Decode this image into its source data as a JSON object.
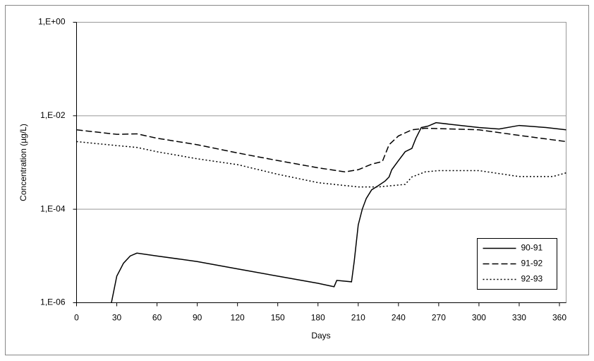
{
  "chart_data": {
    "type": "line",
    "x_label": "Days",
    "y_label": "Concentration (µg/L)",
    "xlim": [
      0,
      365
    ],
    "xticks": [
      0,
      30,
      60,
      90,
      120,
      150,
      180,
      210,
      240,
      270,
      300,
      330,
      360
    ],
    "ylim": [
      1e-06,
      1
    ],
    "y_scale": "log",
    "yticks": [
      {
        "value": 1e-06,
        "label": "1,E-06"
      },
      {
        "value": 0.0001,
        "label": "1,E-04"
      },
      {
        "value": 0.01,
        "label": "1,E-02"
      },
      {
        "value": 1,
        "label": "1,E+00"
      }
    ],
    "grid": true,
    "legend": "lower right",
    "series": [
      {
        "name": "90-91",
        "color": "#000000",
        "line_style": "solid",
        "x": [
          26,
          30,
          35,
          40,
          45,
          60,
          90,
          120,
          150,
          180,
          192,
          194,
          205,
          207,
          210,
          213,
          216,
          220,
          225,
          230,
          233,
          235,
          240,
          245,
          250,
          253,
          257,
          262,
          268,
          300,
          315,
          330,
          350,
          365
        ],
        "values": [
          1e-06,
          3.7e-06,
          7e-06,
          1e-05,
          1.15e-05,
          1e-05,
          7.6e-06,
          5.3e-06,
          3.7e-06,
          2.6e-06,
          2.2e-06,
          3e-06,
          2.8e-06,
          7.6e-06,
          4.6e-05,
          0.0001,
          0.00017,
          0.00026,
          0.00032,
          0.0004,
          0.00049,
          0.0007,
          0.0011,
          0.0017,
          0.002,
          0.0033,
          0.0056,
          0.006,
          0.0071,
          0.0056,
          0.0052,
          0.0062,
          0.0056,
          0.005
        ]
      },
      {
        "name": "91-92",
        "color": "#000000",
        "line_style": "dashed",
        "x": [
          0,
          30,
          45,
          60,
          90,
          120,
          150,
          180,
          200,
          210,
          220,
          228,
          233,
          240,
          250,
          260,
          300,
          330,
          365
        ],
        "values": [
          0.005,
          0.004,
          0.0041,
          0.0033,
          0.0024,
          0.0016,
          0.0011,
          0.00077,
          0.00063,
          0.0007,
          0.00092,
          0.00105,
          0.0024,
          0.0037,
          0.005,
          0.0054,
          0.005,
          0.0038,
          0.0028
        ]
      },
      {
        "name": "92-93",
        "color": "#000000",
        "line_style": "dotted",
        "x": [
          0,
          30,
          45,
          60,
          90,
          120,
          150,
          180,
          210,
          225,
          245,
          250,
          260,
          270,
          300,
          330,
          355,
          365
        ],
        "values": [
          0.0028,
          0.0023,
          0.0021,
          0.0017,
          0.0012,
          0.0009,
          0.00056,
          0.00037,
          0.0003,
          0.0003,
          0.00034,
          0.00049,
          0.00063,
          0.00067,
          0.00067,
          0.0005,
          0.0005,
          0.0006
        ]
      }
    ]
  }
}
